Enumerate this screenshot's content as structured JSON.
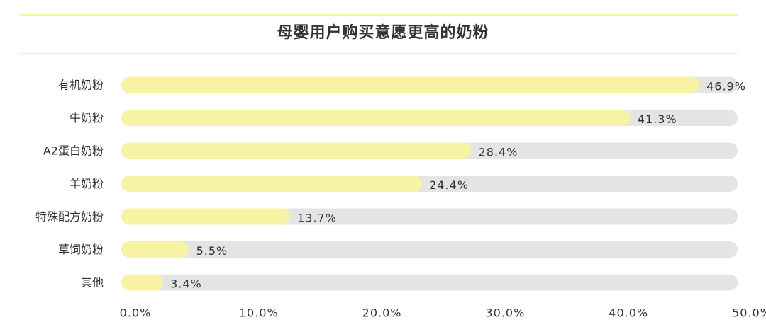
{
  "chart_data": {
    "type": "bar",
    "orientation": "horizontal",
    "title": "母婴用户购买意愿更高的奶粉",
    "categories": [
      "有机奶粉",
      "牛奶粉",
      "A2蛋白奶粉",
      "羊奶粉",
      "特殊配方奶粉",
      "草饲奶粉",
      "其他"
    ],
    "values": [
      46.9,
      41.3,
      28.4,
      24.4,
      13.7,
      5.5,
      3.4
    ],
    "value_labels": [
      "46.9%",
      "41.3%",
      "28.4%",
      "24.4%",
      "13.7%",
      "5.5%",
      "3.4%"
    ],
    "xlim": [
      0,
      50
    ],
    "x_ticks": [
      0,
      10,
      20,
      30,
      40,
      50
    ],
    "x_tick_labels": [
      "0.0%",
      "10.0%",
      "20.0%",
      "30.0%",
      "40.0%",
      "50.0%"
    ],
    "grid": false,
    "colors": {
      "bar": "#F7F2A4",
      "track": "#E4E4E4",
      "accent_rule": "#F7F2A4",
      "text": "#333333"
    }
  }
}
